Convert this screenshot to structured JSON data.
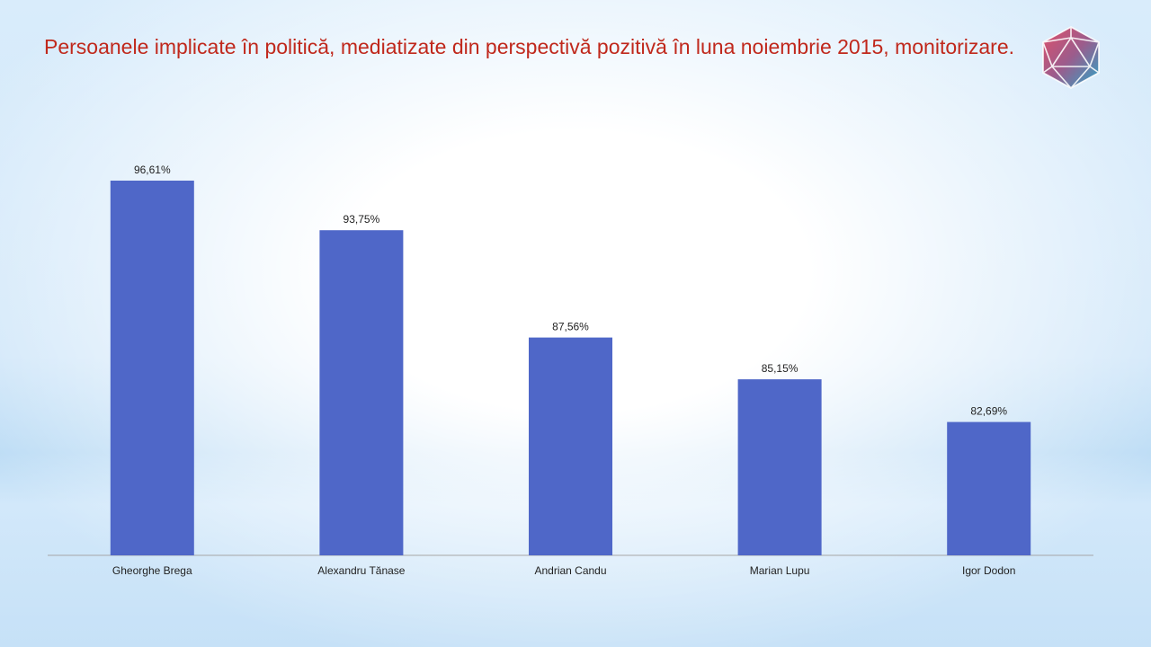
{
  "slide": {
    "title": "Persoanele implicate în politică, mediatizate din perspectivă pozitivă în luna noiembrie 2015, monitorizare."
  },
  "logo": {
    "icon": "icosahedron-logo-icon"
  },
  "colors": {
    "bar": "#4f67c8",
    "title": "#c0281c",
    "axis": "#a6a6a6"
  },
  "chart_data": {
    "type": "bar",
    "categories": [
      "Gheorghe Brega",
      "Alexandru Tănase",
      "Andrian Candu",
      "Marian Lupu",
      "Igor Dodon"
    ],
    "values": [
      96.61,
      93.75,
      87.56,
      85.15,
      82.69
    ],
    "value_labels": [
      "96,61%",
      "93,75%",
      "87,56%",
      "85,15%",
      "82,69%"
    ],
    "ylim": [
      75,
      100
    ],
    "grid": false,
    "legend": "none"
  }
}
